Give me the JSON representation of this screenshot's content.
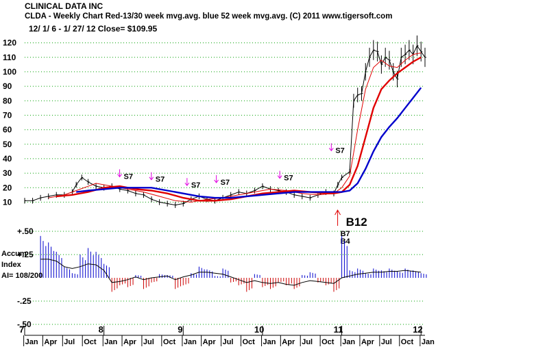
{
  "header": {
    "company": "CLINICAL DATA INC",
    "subtitle": "CLDA  - Weekly Chart  Red-13/30 week mvg.avg.  blue 52 week mvg.avg.  (C) 2011 www.tigersoft.com",
    "range": "12/ 1/ 6 -  1/ 27/ 12    Close= $109.95"
  },
  "side_labels": {
    "accum": "Accum",
    "index": "Index",
    "ai": "AI= 108/200"
  },
  "colors": {
    "price": "#000000",
    "ma_red": "#e00000",
    "ma_blue": "#0000cc",
    "grid": "#00a000",
    "arrow": "#e000e0",
    "buy_arrow": "#e00000",
    "pos_hist": "#0000cc",
    "neg_hist": "#cc0000"
  },
  "chart_data": [
    {
      "type": "line",
      "title": "CLINICAL DATA INC",
      "ylim": [
        5,
        125
      ],
      "yticks": [
        10,
        20,
        30,
        40,
        50,
        60,
        70,
        80,
        90,
        100,
        110,
        120
      ],
      "ytick_labels": [
        "10",
        "20",
        "30",
        "40",
        "50",
        "60",
        "70",
        "80",
        "90",
        "100",
        "110",
        "120"
      ],
      "xlim": [
        2007.0,
        2012.05
      ],
      "grid": true,
      "series": [
        {
          "name": "Weekly Price",
          "color": "#000000",
          "x": [
            2007.0,
            2007.1,
            2007.2,
            2007.3,
            2007.4,
            2007.5,
            2007.6,
            2007.65,
            2007.72,
            2007.8,
            2007.9,
            2008.0,
            2008.1,
            2008.2,
            2008.3,
            2008.4,
            2008.5,
            2008.6,
            2008.7,
            2008.8,
            2008.9,
            2009.0,
            2009.1,
            2009.2,
            2009.3,
            2009.4,
            2009.5,
            2009.6,
            2009.7,
            2009.8,
            2009.9,
            2010.0,
            2010.1,
            2010.2,
            2010.3,
            2010.4,
            2010.5,
            2010.6,
            2010.7,
            2010.8,
            2010.9,
            2010.95,
            2011.0,
            2011.1,
            2011.15,
            2011.2,
            2011.25,
            2011.3,
            2011.35,
            2011.4,
            2011.45,
            2011.5,
            2011.55,
            2011.6,
            2011.65,
            2011.7,
            2011.75,
            2011.8,
            2011.85,
            2011.9,
            2011.95,
            2012.0,
            2012.05
          ],
          "y": [
            11,
            11,
            13,
            14,
            15,
            15,
            17,
            22,
            27,
            24,
            21,
            20,
            21,
            19,
            18,
            16,
            15,
            12,
            10,
            9,
            8,
            9,
            12,
            14,
            12,
            11,
            13,
            15,
            17,
            16,
            18,
            21,
            19,
            18,
            17,
            15,
            14,
            13,
            15,
            17,
            16,
            22,
            27,
            31,
            80,
            84,
            85,
            100,
            110,
            115,
            114,
            105,
            110,
            108,
            100,
            95,
            110,
            112,
            115,
            112,
            118,
            114,
            110
          ]
        },
        {
          "name": "13 week mvg.avg.",
          "color": "#e00000",
          "x": [
            2007.3,
            2007.5,
            2007.7,
            2007.9,
            2008.1,
            2008.3,
            2008.5,
            2008.7,
            2008.9,
            2009.1,
            2009.3,
            2009.5,
            2009.7,
            2009.9,
            2010.1,
            2010.3,
            2010.5,
            2010.7,
            2010.9,
            2011.0,
            2011.1,
            2011.2,
            2011.3,
            2011.4,
            2011.5,
            2011.6,
            2011.7,
            2011.8,
            2011.9,
            2012.0
          ],
          "y": [
            13,
            15,
            19,
            23,
            21,
            19,
            17,
            14,
            11,
            10,
            12,
            13,
            15,
            17,
            19,
            18,
            16,
            15,
            16,
            20,
            28,
            60,
            88,
            103,
            108,
            104,
            103,
            108,
            112,
            113
          ]
        },
        {
          "name": "30 week mvg.avg.",
          "color": "#e00000",
          "x": [
            2007.4,
            2007.6,
            2007.8,
            2008.0,
            2008.2,
            2008.4,
            2008.6,
            2008.8,
            2009.0,
            2009.2,
            2009.4,
            2009.6,
            2009.8,
            2010.0,
            2010.2,
            2010.4,
            2010.6,
            2010.8,
            2010.9,
            2011.0,
            2011.1,
            2011.2,
            2011.3,
            2011.4,
            2011.5,
            2011.6,
            2011.7,
            2011.8,
            2011.9,
            2012.0
          ],
          "y": [
            14,
            15,
            17,
            20,
            21,
            19,
            18,
            16,
            13,
            11,
            11,
            12,
            14,
            16,
            17,
            18,
            17,
            16,
            16,
            17,
            22,
            35,
            55,
            75,
            88,
            94,
            99,
            103,
            107,
            110
          ]
        },
        {
          "name": "52 week mvg.avg.",
          "color": "#0000cc",
          "x": [
            2007.65,
            2007.8,
            2008.0,
            2008.2,
            2008.4,
            2008.6,
            2008.8,
            2009.0,
            2009.2,
            2009.4,
            2009.6,
            2009.8,
            2010.0,
            2010.2,
            2010.4,
            2010.6,
            2010.8,
            2011.0,
            2011.1,
            2011.2,
            2011.3,
            2011.4,
            2011.5,
            2011.6,
            2011.7,
            2011.8,
            2011.9,
            2012.0
          ],
          "y": [
            17,
            18,
            19,
            20,
            20,
            20,
            18,
            16,
            14,
            13,
            13,
            14,
            15,
            16,
            17,
            17,
            17,
            17,
            18,
            23,
            33,
            45,
            55,
            62,
            68,
            75,
            82,
            89
          ]
        }
      ],
      "annotations": [
        {
          "text": "S7",
          "x": 2008.25,
          "y": 27
        },
        {
          "text": "S7",
          "x": 2008.65,
          "y": 25
        },
        {
          "text": "S7",
          "x": 2009.1,
          "y": 21
        },
        {
          "text": "S7",
          "x": 2009.47,
          "y": 23
        },
        {
          "text": "S7",
          "x": 2010.27,
          "y": 26
        },
        {
          "text": "S7",
          "x": 2010.92,
          "y": 45
        }
      ],
      "buy_annotations": [
        {
          "text": "B12",
          "x": 2011.05,
          "y": -2,
          "size": "large"
        },
        {
          "text": "B7",
          "x": 2011.0,
          "y": -9,
          "size": "small"
        },
        {
          "text": "B4",
          "x": 2011.0,
          "y": -13,
          "size": "small"
        }
      ]
    },
    {
      "type": "bar",
      "title": "Accum Index",
      "ylim": [
        -0.5,
        0.5
      ],
      "yticks": [
        0.5,
        0.25,
        -0.25,
        -0.5
      ],
      "ytick_labels": [
        "+.50",
        "+.25",
        "-.25",
        "-.50"
      ],
      "xlim": [
        2007.0,
        2012.05
      ],
      "grid": true,
      "x": [
        2007.2,
        2007.3,
        2007.4,
        2007.5,
        2007.6,
        2007.7,
        2007.8,
        2007.9,
        2008.0,
        2008.1,
        2008.2,
        2008.3,
        2008.4,
        2008.5,
        2008.6,
        2008.7,
        2008.8,
        2008.9,
        2009.0,
        2009.1,
        2009.2,
        2009.3,
        2009.4,
        2009.5,
        2009.6,
        2009.7,
        2009.8,
        2009.9,
        2010.0,
        2010.1,
        2010.2,
        2010.3,
        2010.4,
        2010.5,
        2010.6,
        2010.7,
        2010.8,
        2010.9,
        2011.0,
        2011.1,
        2011.2,
        2011.3,
        2011.4,
        2011.5,
        2011.6,
        2011.7,
        2011.8,
        2011.9,
        2012.0
      ],
      "values": [
        0.45,
        0.38,
        0.28,
        0.12,
        0.05,
        0.25,
        0.32,
        0.28,
        0.15,
        -0.15,
        -0.08,
        -0.1,
        0.03,
        -0.12,
        -0.05,
        0.04,
        0.03,
        -0.12,
        -0.08,
        0.05,
        0.12,
        0.09,
        0.02,
        0.1,
        -0.05,
        -0.08,
        -0.15,
        0.04,
        -0.1,
        -0.12,
        -0.05,
        -0.08,
        -0.12,
        0.03,
        0.06,
        -0.05,
        -0.08,
        -0.15,
        0.45,
        0.08,
        0.1,
        0.05,
        0.1,
        0.08,
        0.1,
        0.07,
        0.1,
        0.08,
        0.05
      ],
      "ma_values": [
        0.2,
        0.2,
        0.18,
        0.12,
        0.1,
        0.12,
        0.15,
        0.14,
        0.08,
        -0.05,
        -0.04,
        -0.02,
        0.01,
        -0.02,
        0.0,
        0.01,
        0.02,
        -0.02,
        0.01,
        0.03,
        0.06,
        0.06,
        0.05,
        0.04,
        0.01,
        -0.02,
        -0.05,
        -0.03,
        -0.05,
        -0.06,
        -0.05,
        -0.07,
        -0.08,
        -0.05,
        -0.03,
        -0.04,
        -0.05,
        -0.06,
        0.0,
        0.02,
        0.04,
        0.05,
        0.06,
        0.06,
        0.07,
        0.07,
        0.08,
        0.07,
        0.06
      ]
    }
  ],
  "x_axis": {
    "years": [
      {
        "label": "7",
        "x": 2007.0
      },
      {
        "label": "8",
        "x": 2008.0
      },
      {
        "label": "9",
        "x": 2009.0
      },
      {
        "label": "10",
        "x": 2010.0
      },
      {
        "label": "11",
        "x": 2011.0
      },
      {
        "label": "12",
        "x": 2012.0
      }
    ],
    "months": [
      {
        "label": "Jan",
        "x": 2007.04
      },
      {
        "label": "Apr",
        "x": 2007.28
      },
      {
        "label": "Jul",
        "x": 2007.53
      },
      {
        "label": "Oct",
        "x": 2007.78
      },
      {
        "label": "Jan",
        "x": 2008.04
      },
      {
        "label": "Apr",
        "x": 2008.28
      },
      {
        "label": "Jul",
        "x": 2008.53
      },
      {
        "label": "Oct",
        "x": 2008.78
      },
      {
        "label": "Jan",
        "x": 2009.04
      },
      {
        "label": "Apr",
        "x": 2009.28
      },
      {
        "label": "Jul",
        "x": 2009.53
      },
      {
        "label": "Oct",
        "x": 2009.78
      },
      {
        "label": "Jan",
        "x": 2010.04
      },
      {
        "label": "Apr",
        "x": 2010.28
      },
      {
        "label": "Jul",
        "x": 2010.53
      },
      {
        "label": "Oct",
        "x": 2010.78
      },
      {
        "label": "Jan",
        "x": 2011.04
      },
      {
        "label": "Apr",
        "x": 2011.28
      },
      {
        "label": "Jul",
        "x": 2011.53
      },
      {
        "label": "Oct",
        "x": 2011.78
      },
      {
        "label": "Jan",
        "x": 2012.04
      }
    ]
  }
}
